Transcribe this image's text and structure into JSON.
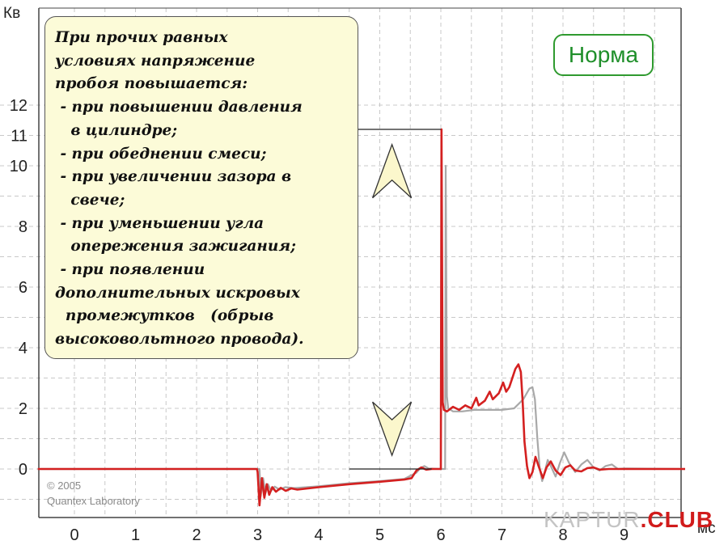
{
  "chart_data": {
    "type": "line",
    "ylabel": "Кв",
    "xlabel": "мс",
    "xlim": [
      -0.6,
      10.0
    ],
    "ylim": [
      -1.6,
      12.6
    ],
    "x_ticks": [
      0,
      1,
      2,
      3,
      4,
      5,
      6,
      7,
      8,
      9
    ],
    "y_ticks": [
      0,
      2,
      4,
      6,
      8,
      10,
      11,
      12
    ],
    "grid": true,
    "series": [
      {
        "color": "#d42020",
        "points": [
          [
            -0.6,
            0
          ],
          [
            2.99,
            0
          ],
          [
            3.0,
            -0.1
          ],
          [
            3.03,
            -1.2
          ],
          [
            3.07,
            -0.3
          ],
          [
            3.11,
            -0.95
          ],
          [
            3.15,
            -0.5
          ],
          [
            3.19,
            -0.85
          ],
          [
            3.24,
            -0.6
          ],
          [
            3.3,
            -0.75
          ],
          [
            3.38,
            -0.62
          ],
          [
            3.46,
            -0.72
          ],
          [
            3.55,
            -0.64
          ],
          [
            3.65,
            -0.68
          ],
          [
            4.0,
            -0.6
          ],
          [
            4.5,
            -0.5
          ],
          [
            5.0,
            -0.42
          ],
          [
            5.4,
            -0.35
          ],
          [
            5.52,
            -0.3
          ],
          [
            5.6,
            -0.05
          ],
          [
            5.68,
            0.05
          ],
          [
            5.76,
            -0.02
          ],
          [
            5.85,
            0.0
          ],
          [
            6.0,
            0.0
          ],
          [
            6.01,
            11.2
          ],
          [
            6.03,
            2.2
          ],
          [
            6.05,
            1.95
          ],
          [
            6.1,
            1.9
          ],
          [
            6.2,
            2.05
          ],
          [
            6.3,
            1.95
          ],
          [
            6.4,
            2.1
          ],
          [
            6.5,
            2.0
          ],
          [
            6.58,
            2.35
          ],
          [
            6.62,
            2.1
          ],
          [
            6.72,
            2.25
          ],
          [
            6.8,
            2.55
          ],
          [
            6.85,
            2.3
          ],
          [
            6.95,
            2.5
          ],
          [
            7.02,
            2.85
          ],
          [
            7.07,
            2.55
          ],
          [
            7.12,
            2.7
          ],
          [
            7.22,
            3.3
          ],
          [
            7.27,
            3.45
          ],
          [
            7.31,
            3.2
          ],
          [
            7.34,
            2.2
          ],
          [
            7.37,
            0.9
          ],
          [
            7.41,
            0.1
          ],
          [
            7.45,
            -0.3
          ],
          [
            7.5,
            -0.1
          ],
          [
            7.55,
            0.4
          ],
          [
            7.6,
            0.1
          ],
          [
            7.67,
            -0.3
          ],
          [
            7.73,
            0.05
          ],
          [
            7.8,
            0.25
          ],
          [
            7.88,
            -0.05
          ],
          [
            7.96,
            -0.2
          ],
          [
            8.04,
            0.05
          ],
          [
            8.12,
            0.12
          ],
          [
            8.2,
            -0.05
          ],
          [
            8.3,
            -0.08
          ],
          [
            8.4,
            0.03
          ],
          [
            8.5,
            0.05
          ],
          [
            8.6,
            -0.02
          ],
          [
            8.75,
            0.0
          ],
          [
            10.0,
            0.0
          ]
        ]
      },
      {
        "color": "#a8a8a8",
        "points": [
          [
            -0.6,
            0
          ],
          [
            3.03,
            0
          ],
          [
            3.05,
            -0.9
          ],
          [
            3.09,
            -0.3
          ],
          [
            3.13,
            -0.8
          ],
          [
            3.17,
            -0.5
          ],
          [
            3.22,
            -0.72
          ],
          [
            3.28,
            -0.58
          ],
          [
            3.36,
            -0.68
          ],
          [
            3.45,
            -0.6
          ],
          [
            3.6,
            -0.63
          ],
          [
            4.0,
            -0.57
          ],
          [
            4.5,
            -0.47
          ],
          [
            5.0,
            -0.4
          ],
          [
            5.4,
            -0.33
          ],
          [
            5.6,
            -0.12
          ],
          [
            5.66,
            0.02
          ],
          [
            5.73,
            0.1
          ],
          [
            5.8,
            0.02
          ],
          [
            6.0,
            0.0
          ],
          [
            6.07,
            0.0
          ],
          [
            6.08,
            10.0
          ],
          [
            6.1,
            2.4
          ],
          [
            6.12,
            2.0
          ],
          [
            6.2,
            1.9
          ],
          [
            6.35,
            1.9
          ],
          [
            6.55,
            1.95
          ],
          [
            6.8,
            1.95
          ],
          [
            7.0,
            1.95
          ],
          [
            7.2,
            2.0
          ],
          [
            7.35,
            2.3
          ],
          [
            7.45,
            2.65
          ],
          [
            7.5,
            2.7
          ],
          [
            7.54,
            2.3
          ],
          [
            7.58,
            1.0
          ],
          [
            7.62,
            0.0
          ],
          [
            7.66,
            -0.4
          ],
          [
            7.7,
            -0.1
          ],
          [
            7.75,
            0.3
          ],
          [
            7.8,
            0.1
          ],
          [
            7.88,
            -0.25
          ],
          [
            7.95,
            0.2
          ],
          [
            8.02,
            0.55
          ],
          [
            8.1,
            0.2
          ],
          [
            8.2,
            -0.1
          ],
          [
            8.3,
            0.15
          ],
          [
            8.4,
            0.3
          ],
          [
            8.5,
            0.05
          ],
          [
            8.6,
            -0.05
          ],
          [
            8.7,
            0.1
          ],
          [
            8.8,
            0.15
          ],
          [
            8.9,
            0.0
          ],
          [
            9.0,
            0.02
          ],
          [
            10.0,
            0.0
          ]
        ]
      }
    ],
    "annotation": {
      "text": "При прочих равных\nусловиях напряжение\nпробоя повышается:\n - при повышении давления\n   в цилиндре;\n - при обеднении смеси;\n - при увеличении зазора в\n   свече;\n - при уменьшении угла\n   опережения зажигания;\n - при появлении\nдополнительных искровых\n  промежутков   (обрыв\nвысоковольтного провода)."
    },
    "marker_levels": {
      "top_y": 11.2,
      "top_x_from": 4.45,
      "top_x_to": 6.0,
      "bottom_y": 0,
      "bottom_x_from": 4.5,
      "bottom_x_to": 5.85,
      "arrow_x": 5.2
    },
    "badge": "Норма",
    "copyright": [
      "© 2005",
      "Quantex Laboratory"
    ],
    "watermark": {
      "part1": "KAPTUR",
      "dot": ".",
      "part2": "CLUB"
    }
  },
  "colors": {
    "signal_red": "#d42020",
    "signal_gray": "#a8a8a8",
    "grid": "#c8c8c8",
    "note_fill": "#fcfbd8",
    "arrow_fill": "#fbf7cc",
    "badge_green": "#2f9a2f"
  }
}
